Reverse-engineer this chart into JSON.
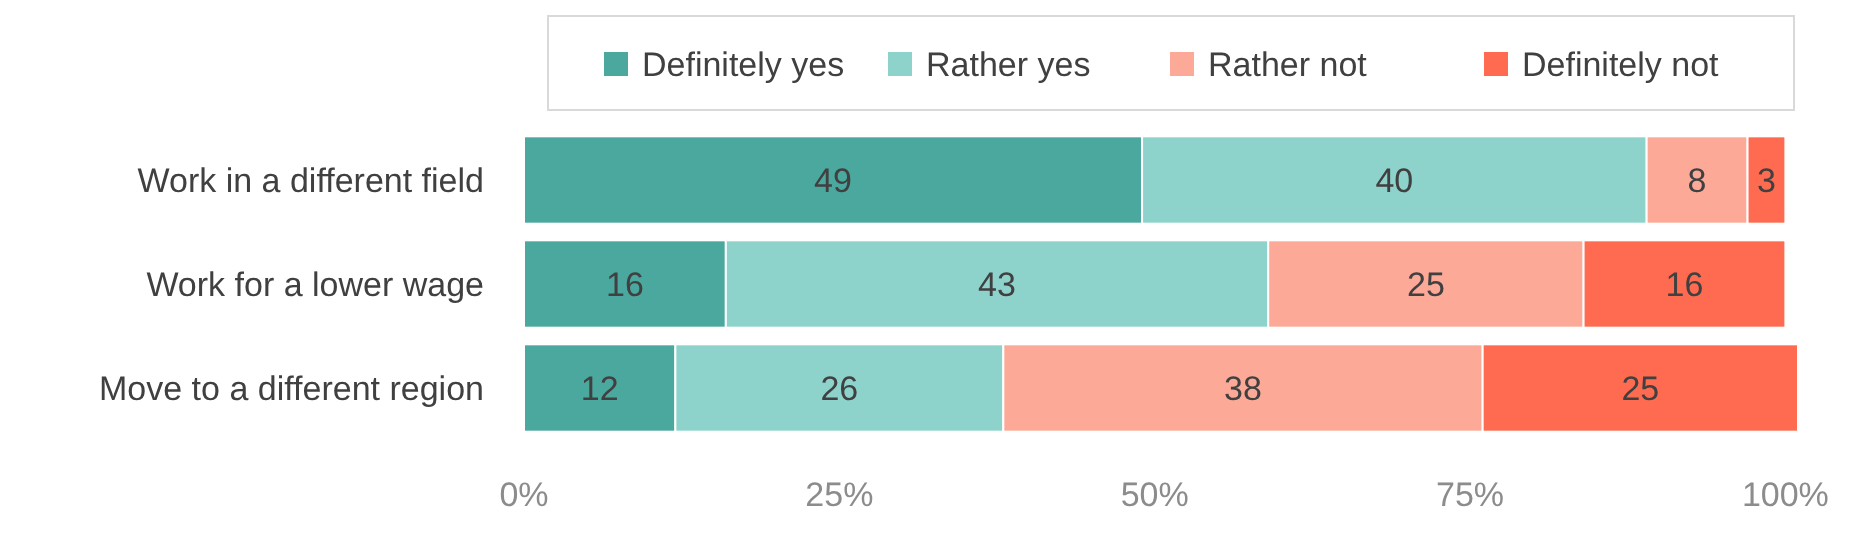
{
  "chart_data": {
    "type": "bar",
    "orientation": "horizontal",
    "stacked": true,
    "categories": [
      "Work in a different field",
      "Work for a lower wage",
      "Move to a different region"
    ],
    "series": [
      {
        "name": "Definitely yes",
        "color": "#4ba89e",
        "values": [
          49,
          16,
          12
        ]
      },
      {
        "name": "Rather yes",
        "color": "#8dd3cc",
        "values": [
          40,
          43,
          26
        ]
      },
      {
        "name": "Rather not",
        "color": "#fca998",
        "values": [
          8,
          25,
          38
        ]
      },
      {
        "name": "Definitely not",
        "color": "#ff6b50",
        "values": [
          3,
          16,
          25
        ]
      }
    ],
    "xlim": [
      0,
      101
    ],
    "xticks": [
      {
        "value": 0,
        "label": "0%"
      },
      {
        "value": 25,
        "label": "25%"
      },
      {
        "value": 50,
        "label": "50%"
      },
      {
        "value": 75,
        "label": "75%"
      },
      {
        "value": 100,
        "label": "100%"
      }
    ],
    "data_labels": true,
    "legend": "top",
    "grid": false
  }
}
